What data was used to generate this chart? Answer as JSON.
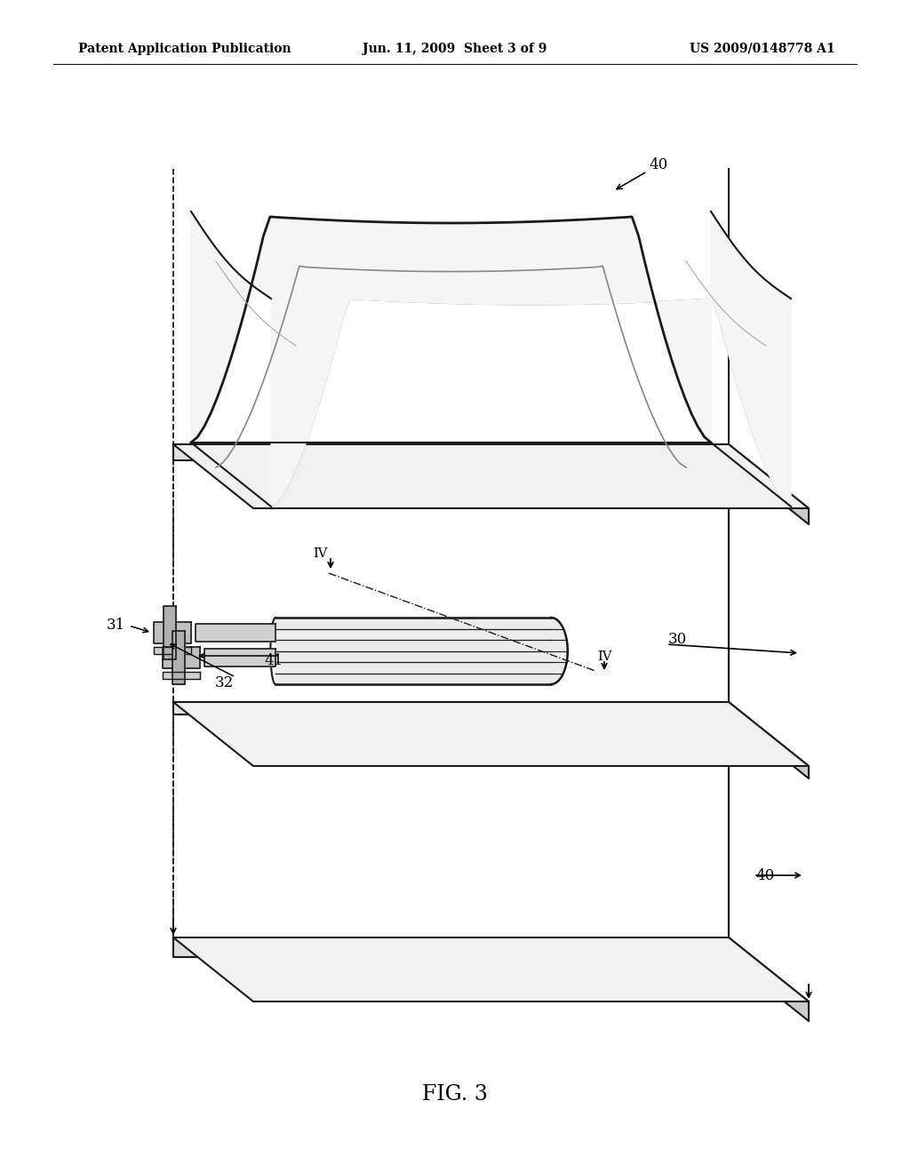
{
  "bg_color": "#ffffff",
  "line_color": "#1a1a1a",
  "header_left": "Patent Application Publication",
  "header_mid": "Jun. 11, 2009  Sheet 3 of 9",
  "header_right": "US 2009/0148778 A1",
  "caption": "FIG. 3",
  "label_40_top": "40",
  "label_30": "30",
  "label_31": "31",
  "label_32": "32",
  "label_41": "41",
  "label_40_bot": "40",
  "label_IV": "IV",
  "gray_fill": "#f0f0f0",
  "gray_mid": "#d8d8d8",
  "gray_dark": "#b8b8b8",
  "gray_side": "#e0e0e0"
}
